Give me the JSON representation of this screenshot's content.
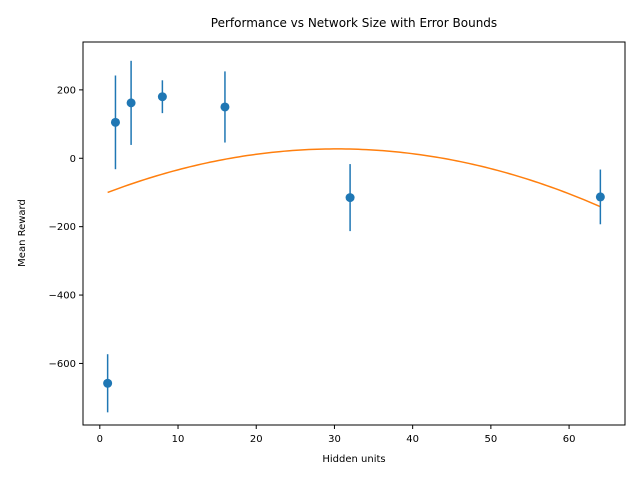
{
  "chart_data": {
    "type": "scatter",
    "title": "Performance vs Network Size with Error Bounds",
    "xlabel": "Hidden units",
    "ylabel": "Mean Reward",
    "xlim": [
      -2.15,
      67.15
    ],
    "ylim": [
      -780,
      340
    ],
    "xticks": [
      0,
      10,
      20,
      30,
      40,
      50,
      60
    ],
    "yticks": [
      -600,
      -400,
      -200,
      0,
      200
    ],
    "grid": false,
    "colors": {
      "points": "#1f77b4",
      "fit": "#ff7f0e"
    },
    "series": [
      {
        "kind": "errorbar",
        "x": [
          1,
          2,
          4,
          8,
          16,
          32,
          64
        ],
        "y": [
          -658,
          105,
          162,
          180,
          150,
          -115,
          -113
        ],
        "yerr": [
          85,
          137,
          123,
          48,
          104,
          98,
          80
        ]
      },
      {
        "kind": "fit-curve",
        "x": [
          1,
          64
        ],
        "coefficients": [
          -0.1486,
          9.0,
          -108.9
        ]
      }
    ]
  }
}
